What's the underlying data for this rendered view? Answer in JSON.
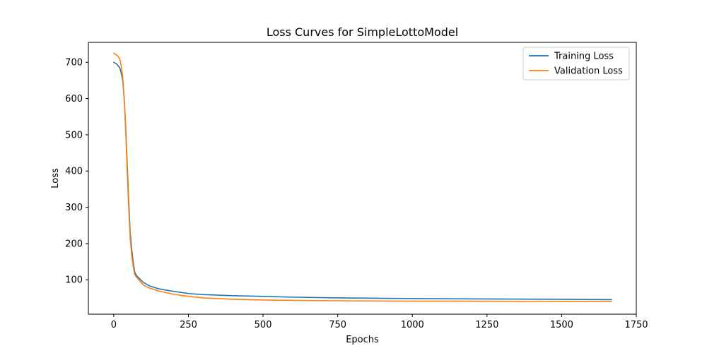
{
  "chart_data": {
    "type": "line",
    "title": "Loss Curves for SimpleLottoModel",
    "xlabel": "Epochs",
    "ylabel": "Loss",
    "xlim": [
      -85,
      1750
    ],
    "ylim": [
      5,
      755
    ],
    "xticks": [
      0,
      250,
      500,
      750,
      1000,
      1250,
      1500,
      1750
    ],
    "xtick_labels": [
      "0",
      "250",
      "500",
      "750",
      "1000",
      "1250",
      "1500",
      "1750"
    ],
    "yticks": [
      100,
      200,
      300,
      400,
      500,
      600,
      700
    ],
    "ytick_labels": [
      "100",
      "200",
      "300",
      "400",
      "500",
      "600",
      "700"
    ],
    "grid": false,
    "legend_position": "top-right",
    "series": [
      {
        "name": "Training Loss",
        "color": "#1f77b4",
        "x": [
          0,
          10,
          20,
          25,
          30,
          35,
          40,
          45,
          50,
          55,
          60,
          65,
          70,
          75,
          80,
          90,
          100,
          120,
          150,
          200,
          250,
          300,
          400,
          500,
          600,
          750,
          1000,
          1250,
          1500,
          1667
        ],
        "y": [
          700,
          695,
          685,
          670,
          650,
          600,
          520,
          420,
          320,
          230,
          185,
          150,
          122,
          113,
          108,
          100,
          92,
          83,
          75,
          68,
          62,
          59,
          56,
          54,
          52,
          50,
          48,
          47,
          46,
          45
        ]
      },
      {
        "name": "Validation Loss",
        "color": "#ff7f0e",
        "x": [
          0,
          10,
          20,
          25,
          30,
          35,
          40,
          45,
          50,
          55,
          60,
          65,
          70,
          75,
          80,
          90,
          100,
          120,
          150,
          200,
          250,
          300,
          400,
          500,
          600,
          750,
          1000,
          1250,
          1500,
          1667
        ],
        "y": [
          725,
          720,
          710,
          690,
          660,
          600,
          510,
          400,
          300,
          215,
          168,
          138,
          115,
          108,
          104,
          94,
          85,
          77,
          69,
          60,
          54,
          50,
          46,
          44,
          43,
          42,
          41,
          41,
          40,
          40
        ]
      }
    ]
  }
}
